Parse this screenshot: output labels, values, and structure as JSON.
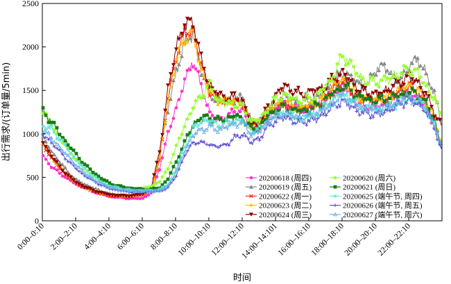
{
  "chart_data": {
    "type": "line",
    "xlabel": "时间",
    "ylabel": "出行需求/(订单量/5min)",
    "ylim": [
      0,
      2500
    ],
    "yticks": [
      0,
      500,
      1000,
      1500,
      2000,
      2500
    ],
    "x_tick_labels": [
      "0:00–0:10",
      "2:00–2:10",
      "4:00–4:10",
      "6:00–6:10",
      "8:00–8:10",
      "10:00–10:10",
      "12:00–12:10",
      "14:00–14:101",
      "16:00–16:10",
      "18:00–18:10",
      "20:00–20:10",
      "22:00–22:10"
    ],
    "x_tick_slots": [
      0,
      24,
      48,
      72,
      96,
      120,
      144,
      168,
      192,
      216,
      240,
      264
    ],
    "x_domain": [
      0,
      288
    ],
    "grid": false,
    "legend_position": "lower-right",
    "series_anchors_x": [
      0,
      6,
      12,
      18,
      24,
      30,
      36,
      42,
      48,
      54,
      60,
      66,
      72,
      78,
      84,
      90,
      96,
      102,
      108,
      114,
      120,
      126,
      132,
      138,
      144,
      150,
      156,
      162,
      168,
      174,
      180,
      186,
      192,
      198,
      204,
      210,
      216,
      222,
      228,
      234,
      240,
      246,
      252,
      258,
      264,
      270,
      276,
      282,
      287
    ],
    "series": [
      {
        "name": "20200618 (周四)",
        "color": "#ff33cc",
        "marker": "circle",
        "values": [
          750,
          620,
          550,
          480,
          420,
          380,
          340,
          310,
          280,
          270,
          260,
          255,
          260,
          320,
          600,
          1000,
          1300,
          1600,
          1850,
          1550,
          1250,
          1150,
          1200,
          1250,
          1280,
          1050,
          1080,
          1180,
          1280,
          1350,
          1300,
          1280,
          1300,
          1320,
          1380,
          1480,
          1560,
          1450,
          1320,
          1330,
          1300,
          1340,
          1380,
          1400,
          1450,
          1420,
          1300,
          1100,
          850
        ]
      },
      {
        "name": "20200619 (周五)",
        "color": "#888888",
        "marker": "triangle",
        "values": [
          950,
          800,
          680,
          560,
          470,
          420,
          380,
          340,
          310,
          300,
          295,
          300,
          310,
          380,
          750,
          1300,
          1700,
          2050,
          2150,
          1750,
          1450,
          1380,
          1380,
          1400,
          1400,
          1150,
          1150,
          1250,
          1350,
          1450,
          1380,
          1360,
          1380,
          1420,
          1500,
          1620,
          1700,
          1650,
          1580,
          1560,
          1750,
          1780,
          1650,
          1600,
          1800,
          1850,
          1700,
          1450,
          1150
        ]
      },
      {
        "name": "20200622 (周一)",
        "color": "#ff2020",
        "marker": "x",
        "values": [
          880,
          720,
          600,
          500,
          430,
          380,
          340,
          310,
          290,
          280,
          275,
          280,
          300,
          360,
          700,
          1400,
          1900,
          2150,
          2200,
          1800,
          1500,
          1400,
          1380,
          1380,
          1350,
          1080,
          1100,
          1250,
          1300,
          1350,
          1300,
          1280,
          1330,
          1350,
          1420,
          1550,
          1600,
          1500,
          1400,
          1400,
          1380,
          1400,
          1450,
          1500,
          1550,
          1480,
          1350,
          1150,
          850
        ]
      },
      {
        "name": "20200623 (周二)",
        "color": "#ffc000",
        "marker": "star",
        "values": [
          900,
          740,
          620,
          520,
          440,
          390,
          350,
          320,
          300,
          290,
          285,
          290,
          310,
          370,
          720,
          1380,
          1850,
          2100,
          2150,
          1750,
          1480,
          1390,
          1370,
          1380,
          1350,
          1100,
          1120,
          1260,
          1320,
          1370,
          1320,
          1290,
          1340,
          1360,
          1430,
          1560,
          1620,
          1520,
          1420,
          1410,
          1400,
          1420,
          1460,
          1520,
          1560,
          1500,
          1380,
          1180,
          880
        ]
      },
      {
        "name": "20200624 (周三)",
        "color": "#8b0000",
        "marker": "triangle-down",
        "values": [
          900,
          750,
          620,
          520,
          440,
          390,
          350,
          320,
          300,
          290,
          285,
          290,
          310,
          380,
          800,
          1500,
          2000,
          2250,
          2300,
          1850,
          1550,
          1450,
          1420,
          1420,
          1380,
          1100,
          1120,
          1300,
          1450,
          1550,
          1500,
          1450,
          1480,
          1500,
          1550,
          1650,
          1700,
          1600,
          1500,
          1480,
          1450,
          1480,
          1550,
          1600,
          1650,
          1600,
          1450,
          1250,
          1100
        ]
      },
      {
        "name": "20200620 (周六)",
        "color": "#99ff33",
        "marker": "diamond",
        "values": [
          1250,
          1100,
          950,
          820,
          700,
          600,
          520,
          450,
          400,
          380,
          370,
          365,
          370,
          400,
          450,
          600,
          850,
          1100,
          1300,
          1450,
          1550,
          1400,
          1350,
          1350,
          1300,
          1150,
          1150,
          1300,
          1400,
          1450,
          1400,
          1380,
          1400,
          1450,
          1550,
          1700,
          1900,
          1800,
          1650,
          1600,
          1600,
          1620,
          1650,
          1700,
          1750,
          1700,
          1550,
          1400,
          1200
        ]
      },
      {
        "name": "20200621 (周日)",
        "color": "#1a7a1a",
        "marker": "square",
        "values": [
          1250,
          1150,
          1000,
          880,
          760,
          650,
          560,
          490,
          430,
          400,
          380,
          370,
          360,
          360,
          380,
          480,
          680,
          900,
          1100,
          1180,
          1200,
          1150,
          1180,
          1200,
          1180,
          1050,
          1080,
          1200,
          1280,
          1300,
          1280,
          1260,
          1280,
          1320,
          1400,
          1480,
          1550,
          1500,
          1420,
          1400,
          1380,
          1400,
          1420,
          1450,
          1480,
          1450,
          1350,
          1150,
          850
        ]
      },
      {
        "name": "20200625 (端午节, 周四)",
        "color": "#66e6d9",
        "marker": "star",
        "values": [
          1100,
          1050,
          950,
          820,
          700,
          600,
          520,
          450,
          400,
          380,
          360,
          350,
          350,
          350,
          360,
          420,
          600,
          850,
          1050,
          1150,
          1150,
          1100,
          1120,
          1150,
          1150,
          1020,
          1050,
          1150,
          1200,
          1250,
          1200,
          1180,
          1200,
          1250,
          1320,
          1400,
          1450,
          1400,
          1320,
          1300,
          1280,
          1300,
          1320,
          1380,
          1400,
          1380,
          1300,
          1100,
          850
        ]
      },
      {
        "name": "20200626 (端午节, 周五)",
        "color": "#5a4ccc",
        "marker": "plus",
        "values": [
          1000,
          900,
          800,
          690,
          600,
          520,
          460,
          410,
          370,
          350,
          335,
          330,
          330,
          330,
          340,
          380,
          520,
          750,
          900,
          900,
          880,
          850,
          880,
          950,
          1000,
          900,
          950,
          1080,
          1150,
          1200,
          1150,
          1130,
          1150,
          1180,
          1250,
          1320,
          1380,
          1320,
          1250,
          1230,
          1220,
          1250,
          1300,
          1350,
          1380,
          1350,
          1260,
          1080,
          820
        ]
      },
      {
        "name": "20200627 (端午节, 周六)",
        "color": "#6ab0e8",
        "marker": "triangle-small",
        "values": [
          1050,
          950,
          850,
          740,
          640,
          550,
          480,
          430,
          390,
          365,
          350,
          345,
          345,
          345,
          350,
          400,
          560,
          800,
          980,
          1050,
          1080,
          1050,
          1080,
          1120,
          1130,
          1000,
          1030,
          1140,
          1200,
          1240,
          1200,
          1180,
          1200,
          1240,
          1300,
          1380,
          1430,
          1380,
          1300,
          1290,
          1280,
          1300,
          1330,
          1380,
          1420,
          1390,
          1290,
          1100,
          850
        ]
      }
    ]
  }
}
